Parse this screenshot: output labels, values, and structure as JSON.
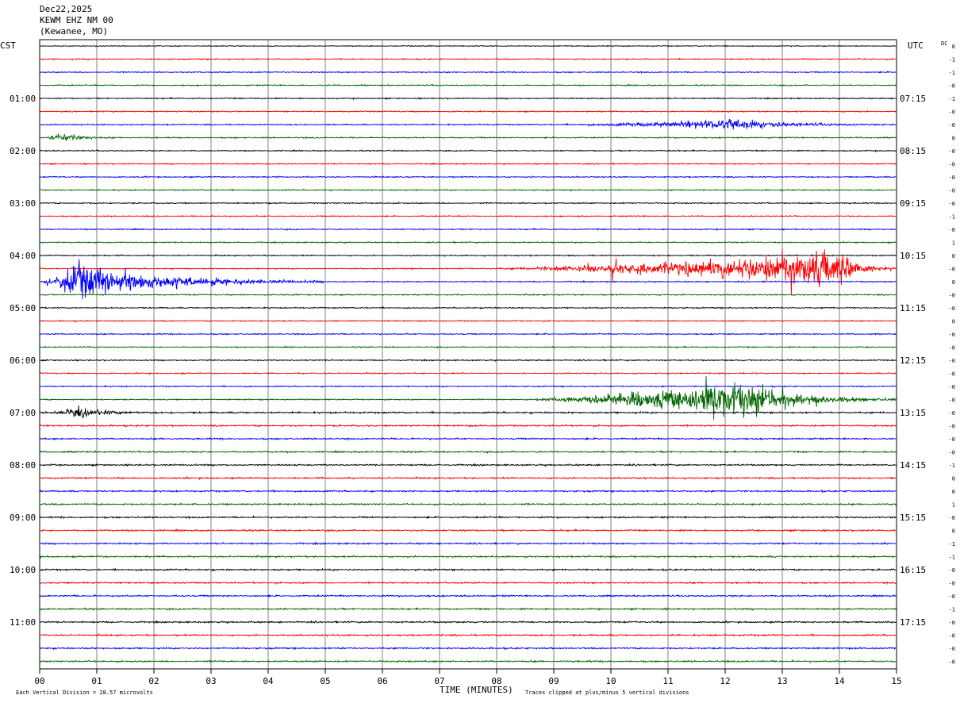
{
  "header": {
    "date": "Dec22,2025",
    "station": "KEWM EHZ NM 00",
    "location": "(Kewanee, MO)"
  },
  "labels": {
    "left_tz": "CST",
    "right_tz": "UTC",
    "dc_header": "DC",
    "x_title": "TIME (MINUTES)",
    "footer_scale": "Each Vertical Division =   28.57 microvolts",
    "footer_clip": "Traces clipped at plus/minus 5 vertical divisions"
  },
  "colors": {
    "trace_cycle": [
      "#000000",
      "#ff0000",
      "#0000ff",
      "#006400"
    ],
    "grid": "#808080"
  },
  "chart_data": {
    "type": "helicorder",
    "x_ticks": [
      "00",
      "01",
      "02",
      "03",
      "04",
      "05",
      "06",
      "07",
      "08",
      "09",
      "10",
      "11",
      "12",
      "13",
      "14",
      "15"
    ],
    "xlim": [
      0,
      15
    ],
    "traces_per_hour": 4,
    "num_traces": 48,
    "left_hour_labels": [
      "01:00",
      "02:00",
      "03:00",
      "04:00",
      "05:00",
      "06:00",
      "07:00",
      "08:00",
      "09:00",
      "10:00",
      "11:00"
    ],
    "right_hour_labels": [
      "07:15",
      "08:15",
      "09:15",
      "10:15",
      "11:15",
      "12:15",
      "13:15",
      "14:15",
      "15:15",
      "16:15",
      "17:15"
    ],
    "hour_label_first_trace": 4,
    "dc_offsets": [
      "0",
      "-1",
      "-1",
      "-0",
      "-1",
      "-0",
      "-0",
      "0",
      "-0",
      "-0",
      "-0",
      "-0",
      "-0",
      "-1",
      "-0",
      "1",
      "0",
      "-0",
      "0",
      "-0",
      "-0",
      "0",
      "-0",
      "-0",
      "-0",
      "-0",
      "-0",
      "-0",
      "-0",
      "-0",
      "-0",
      "-0",
      "-1",
      "0",
      "0",
      "1",
      "-0",
      "0",
      "-1",
      "-1",
      "-0",
      "-0",
      "-0",
      "-1",
      "-0",
      "-0",
      "-0",
      "-0"
    ],
    "noise_profile": [
      {
        "trace": 0,
        "level": "low"
      },
      {
        "trace": 6,
        "level": "event",
        "start_min": 8.8,
        "peak_min": 12.2,
        "end_min": 15
      },
      {
        "trace": 7,
        "level": "event",
        "start_min": 0,
        "peak_min": 0.4,
        "end_min": 1.3
      },
      {
        "trace": 17,
        "level": "large-event",
        "start_min": 7.6,
        "peak_min": 14.0,
        "end_min": 15
      },
      {
        "trace": 18,
        "level": "large-event",
        "start_min": 0,
        "peak_min": 0.6,
        "end_min": 5.0
      },
      {
        "trace": 27,
        "level": "large-event",
        "start_min": 8.2,
        "peak_min": 12.3,
        "end_min": 15
      },
      {
        "trace": 28,
        "level": "event",
        "start_min": 0,
        "peak_min": 0.7,
        "end_min": 2.3
      },
      {
        "trace": 28,
        "level": "elevated",
        "start_min": 0,
        "end_min": 15
      }
    ],
    "scale_microvolts_per_division": 28.57,
    "clip_divisions": 5
  }
}
